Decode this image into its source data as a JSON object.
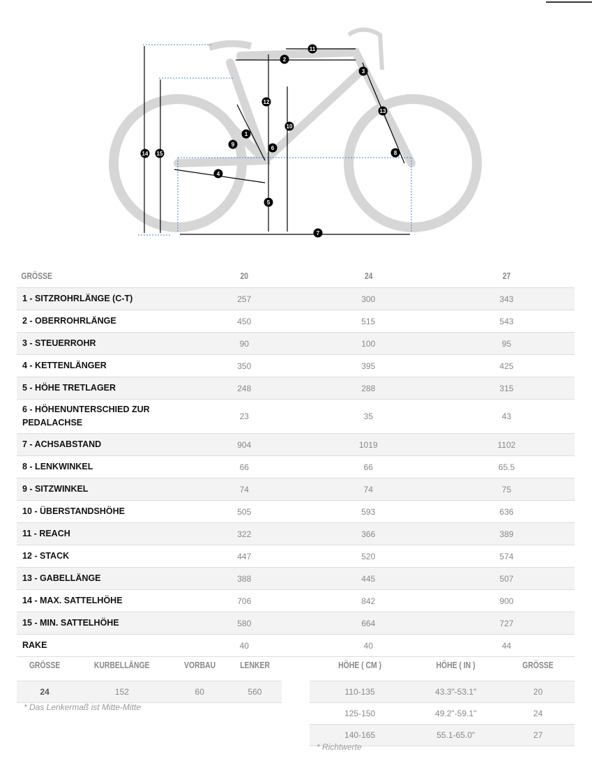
{
  "diagram": {
    "markers": [
      "1",
      "2",
      "3",
      "4",
      "5",
      "6",
      "7",
      "8",
      "9",
      "10",
      "11",
      "12",
      "13",
      "14",
      "15"
    ]
  },
  "geometry": {
    "header": [
      "GRÖSSE",
      "20",
      "24",
      "27"
    ],
    "rows": [
      [
        "1 - SITZROHRLÄNGE (C-T)",
        "257",
        "300",
        "343"
      ],
      [
        "2 - OBERROHRLÄNGE",
        "450",
        "515",
        "543"
      ],
      [
        "3 - STEUERROHR",
        "90",
        "100",
        "95"
      ],
      [
        "4 - KETTENLÄNGER",
        "350",
        "395",
        "425"
      ],
      [
        "5 - HÖHE TRETLAGER",
        "248",
        "288",
        "315"
      ],
      [
        "6 - HÖHENUNTERSCHIED ZUR PEDALACHSE",
        "23",
        "35",
        "43"
      ],
      [
        "7 - ACHSABSTAND",
        "904",
        "1019",
        "1102"
      ],
      [
        "8 - LENKWINKEL",
        "66",
        "66",
        "65.5"
      ],
      [
        "9 - SITZWINKEL",
        "74",
        "74",
        "75"
      ],
      [
        "10 - ÜBERSTANDSHÖHE",
        "505",
        "593",
        "636"
      ],
      [
        "11 - REACH",
        "322",
        "366",
        "389"
      ],
      [
        "12 - STACK",
        "447",
        "520",
        "574"
      ],
      [
        "13 - GABELLÄNGE",
        "388",
        "445",
        "507"
      ],
      [
        "14 - MAX. SATTELHÖHE",
        "706",
        "842",
        "900"
      ],
      [
        "15 - MIN. SATTELHÖHE",
        "580",
        "664",
        "727"
      ],
      [
        "RAKE",
        "40",
        "40",
        "44"
      ]
    ]
  },
  "components": {
    "header": [
      "GRÖSSE",
      "KURBELLÄNGE",
      "VORBAU",
      "LENKER"
    ],
    "rows": [
      [
        "24",
        "152",
        "60",
        "560"
      ]
    ],
    "note": "* Das Lenkermaß ist Mitte-Mitte"
  },
  "sizing": {
    "header": [
      "HÖHE ( CM )",
      "HÖHE ( IN )",
      "GRÖSSE"
    ],
    "rows": [
      [
        "110-135",
        "43.3\"-53.1\"",
        "20"
      ],
      [
        "125-150",
        "49.2\"-59.1\"",
        "24"
      ],
      [
        "140-165",
        "55.1-65.0\"",
        "27"
      ]
    ],
    "note": "* Richtwerte"
  }
}
